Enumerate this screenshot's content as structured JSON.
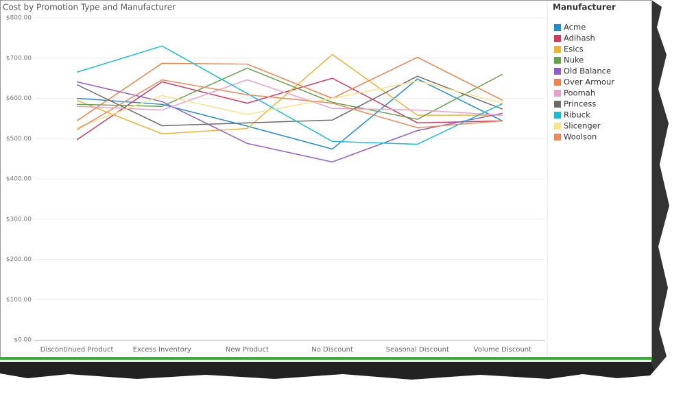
{
  "chart_data": {
    "type": "line",
    "title": "Cost by Promotion Type and Manufacturer",
    "legend_title": "Manufacturer",
    "legend_position": "right",
    "categories": [
      "Discontinued Product",
      "Excess Inventory",
      "New Product",
      "No Discount",
      "Seasonal Discount",
      "Volume Discount"
    ],
    "ylim": [
      0,
      800
    ],
    "yticks": [
      {
        "value": 0,
        "label": "$0.00"
      },
      {
        "value": 100,
        "label": "$100.00"
      },
      {
        "value": 200,
        "label": "$200.00"
      },
      {
        "value": 300,
        "label": "$300.00"
      },
      {
        "value": 400,
        "label": "$400.00"
      },
      {
        "value": 500,
        "label": "$500.00"
      },
      {
        "value": 600,
        "label": "$600.00"
      },
      {
        "value": 700,
        "label": "$700.00"
      },
      {
        "value": 800,
        "label": "$800.00"
      }
    ],
    "grid": true,
    "series": [
      {
        "name": "Acme",
        "color": "#1f8dd6",
        "values": [
          600,
          585,
          531,
          474,
          648,
          544
        ]
      },
      {
        "name": "Adihash",
        "color": "#d6375f",
        "values": [
          497,
          641,
          588,
          650,
          539,
          544
        ]
      },
      {
        "name": "Esics",
        "color": "#f2b22e",
        "values": [
          595,
          512,
          525,
          709,
          558,
          558
        ]
      },
      {
        "name": "Nuke",
        "color": "#62a34c",
        "values": [
          585,
          580,
          675,
          590,
          548,
          660
        ]
      },
      {
        "name": "Old Balance",
        "color": "#8f5bd0",
        "values": [
          641,
          592,
          488,
          442,
          520,
          563
        ]
      },
      {
        "name": "Over Armour",
        "color": "#f2814a",
        "values": [
          544,
          687,
          685,
          600,
          702,
          595
        ]
      },
      {
        "name": "Poomah",
        "color": "#eba0c8",
        "values": [
          580,
          571,
          646,
          575,
          571,
          558
        ]
      },
      {
        "name": "Princess",
        "color": "#6b6b6b",
        "values": [
          634,
          532,
          539,
          546,
          655,
          573
        ]
      },
      {
        "name": "Ribuck",
        "color": "#14bfd3",
        "values": [
          665,
          730,
          612,
          493,
          486,
          587
        ]
      },
      {
        "name": "Slicenger",
        "color": "#f7e38a",
        "values": [
          527,
          607,
          560,
          600,
          643,
          588
        ]
      },
      {
        "name": "Woolson",
        "color": "#ef8a5a",
        "values": [
          522,
          646,
          609,
          588,
          527,
          544
        ]
      }
    ]
  }
}
